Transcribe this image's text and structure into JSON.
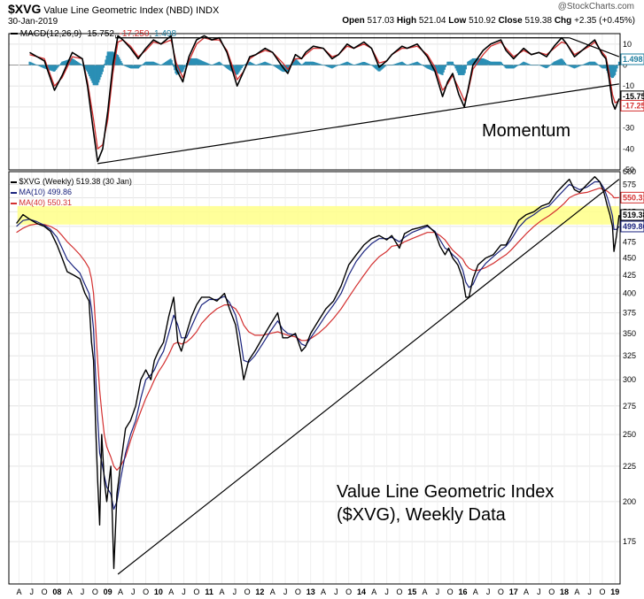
{
  "header": {
    "symbol": "$XVG",
    "name": "Value Line Geometric Index (NBD)",
    "exchange": "INDX",
    "date": "30-Jan-2019",
    "watermark": "@StockCharts.com",
    "open_label": "Open",
    "open": "517.03",
    "high_label": "High",
    "high": "521.04",
    "low_label": "Low",
    "low": "510.92",
    "close_label": "Close",
    "close": "519.38",
    "chg_label": "Chg",
    "chg": "+2.35 (+0.45%)"
  },
  "chart_data": [
    {
      "type": "line",
      "panel": "macd",
      "legend": {
        "macd_label": "MACD(12,26,9)",
        "macd_value": "-15.752",
        "signal_value": "-17.250",
        "hist_value": "1.498"
      },
      "ylim": [
        -50,
        15
      ],
      "y_ticks": [
        "10",
        "0",
        "-10",
        "-20",
        "-30",
        "-40",
        "-50"
      ],
      "annotation": "Momentum",
      "last_value_tags": [
        "1.498",
        "-15.752",
        "-17.250"
      ],
      "x_year": [
        2007.46,
        2007.75,
        2007.95,
        2008.1,
        2008.3,
        2008.5,
        2008.6,
        2008.72,
        2008.8,
        2008.9,
        2009.0,
        2009.1,
        2009.2,
        2009.3,
        2009.45,
        2009.6,
        2009.75,
        2009.9,
        2010.05,
        2010.25,
        2010.35,
        2010.48,
        2010.6,
        2010.75,
        2010.9,
        2011.05,
        2011.2,
        2011.35,
        2011.55,
        2011.68,
        2011.8,
        2011.92,
        2012.1,
        2012.25,
        2012.45,
        2012.55,
        2012.7,
        2012.82,
        2012.9,
        2013.05,
        2013.25,
        2013.42,
        2013.55,
        2013.72,
        2013.85,
        2014.05,
        2014.2,
        2014.35,
        2014.5,
        2014.6,
        2014.8,
        2014.9,
        2015.1,
        2015.3,
        2015.45,
        2015.6,
        2015.7,
        2015.8,
        2015.92,
        2016.03,
        2016.1,
        2016.2,
        2016.4,
        2016.55,
        2016.75,
        2016.85,
        2017.0,
        2017.2,
        2017.35,
        2017.5,
        2017.65,
        2017.8,
        2017.95,
        2018.05,
        2018.2,
        2018.35,
        2018.5,
        2018.6,
        2018.75,
        2018.82,
        2018.88,
        2018.95,
        2019.0,
        2019.08
      ],
      "series": [
        {
          "key": "macd",
          "values": [
            6,
            2,
            -12,
            -5,
            6,
            3,
            -10,
            -32,
            -46,
            -40,
            -22,
            0,
            14,
            12,
            8,
            3,
            8,
            12,
            10,
            14,
            -2,
            -8,
            4,
            12,
            14,
            12,
            13,
            6,
            -10,
            -3,
            4,
            5,
            8,
            6,
            -1,
            -4,
            5,
            3,
            6,
            9,
            8,
            3,
            5,
            10,
            8,
            11,
            8,
            -1,
            2,
            5,
            9,
            8,
            10,
            4,
            -3,
            -15,
            -8,
            -4,
            -14,
            -20,
            -12,
            0,
            7,
            10,
            12,
            7,
            3,
            8,
            5,
            6,
            4,
            9,
            13,
            10,
            4,
            7,
            10,
            12,
            5,
            3,
            -6,
            -18,
            -21,
            -16
          ]
        },
        {
          "key": "signal",
          "values": [
            5,
            3,
            -10,
            -6,
            4,
            3,
            -8,
            -26,
            -40,
            -38,
            -26,
            -4,
            11,
            12,
            9,
            4,
            7,
            11,
            10,
            12,
            1,
            -6,
            2,
            10,
            13,
            12,
            12,
            7,
            -7,
            -3,
            3,
            5,
            7,
            6,
            1,
            -2,
            3,
            3,
            5,
            8,
            8,
            4,
            5,
            9,
            8,
            10,
            8,
            1,
            2,
            5,
            8,
            8,
            9,
            5,
            -1,
            -12,
            -9,
            -5,
            -11,
            -17,
            -13,
            -2,
            5,
            9,
            11,
            8,
            4,
            7,
            5,
            6,
            5,
            8,
            11,
            10,
            5,
            7,
            9,
            11,
            6,
            4,
            -3,
            -14,
            -18,
            -17
          ]
        }
      ]
    },
    {
      "type": "line",
      "panel": "price",
      "title": "Value Line Geometric Index ($XVG), Weekly Data",
      "annotation_line1": "Value Line Geometric Index",
      "annotation_line2": "($XVG), Weekly Data",
      "legend": [
        {
          "label": "$XVG (Weekly) 519.38 (30 Jan)",
          "color": "#000000"
        },
        {
          "label": "MA(10) 499.86",
          "color": "#1a237e"
        },
        {
          "label": "MA(40) 550.31",
          "color": "#d32f2f"
        }
      ],
      "scale": "log",
      "ylim": [
        152,
        600
      ],
      "y_ticks": [
        600,
        575,
        550,
        525,
        500,
        475,
        450,
        425,
        400,
        375,
        350,
        325,
        300,
        275,
        250,
        225,
        200,
        175
      ],
      "last_value_tags": [
        "550.31",
        "519.38",
        "499.86"
      ],
      "resistance_band": [
        503,
        535
      ],
      "x_tick_labels": [
        "A",
        "J",
        "O",
        "08",
        "A",
        "J",
        "O",
        "09",
        "A",
        "J",
        "O",
        "10",
        "A",
        "J",
        "O",
        "11",
        "A",
        "J",
        "O",
        "12",
        "A",
        "J",
        "O",
        "13",
        "A",
        "J",
        "O",
        "14",
        "A",
        "J",
        "O",
        "15",
        "A",
        "J",
        "O",
        "16",
        "A",
        "J",
        "O",
        "17",
        "A",
        "J",
        "O",
        "18",
        "A",
        "J",
        "O",
        "19"
      ],
      "x_year": [
        2007.2,
        2007.33,
        2007.46,
        2007.6,
        2007.75,
        2007.87,
        2008.0,
        2008.1,
        2008.2,
        2008.33,
        2008.45,
        2008.55,
        2008.63,
        2008.68,
        2008.72,
        2008.76,
        2008.8,
        2008.84,
        2008.88,
        2008.93,
        2008.98,
        2009.06,
        2009.12,
        2009.18,
        2009.25,
        2009.35,
        2009.45,
        2009.55,
        2009.65,
        2009.75,
        2009.85,
        2009.92,
        2010.0,
        2010.1,
        2010.2,
        2010.3,
        2010.38,
        2010.45,
        2010.55,
        2010.65,
        2010.75,
        2010.85,
        2011.0,
        2011.15,
        2011.3,
        2011.4,
        2011.52,
        2011.6,
        2011.68,
        2011.78,
        2011.9,
        2012.05,
        2012.2,
        2012.35,
        2012.45,
        2012.55,
        2012.7,
        2012.82,
        2012.9,
        2013.0,
        2013.15,
        2013.3,
        2013.45,
        2013.6,
        2013.75,
        2013.9,
        2014.05,
        2014.2,
        2014.35,
        2014.5,
        2014.6,
        2014.75,
        2014.85,
        2015.0,
        2015.15,
        2015.3,
        2015.45,
        2015.55,
        2015.65,
        2015.72,
        2015.8,
        2015.9,
        2016.0,
        2016.06,
        2016.12,
        2016.2,
        2016.3,
        2016.45,
        2016.6,
        2016.75,
        2016.85,
        2016.95,
        2017.1,
        2017.25,
        2017.4,
        2017.55,
        2017.7,
        2017.85,
        2018.0,
        2018.1,
        2018.2,
        2018.3,
        2018.45,
        2018.6,
        2018.7,
        2018.78,
        2018.85,
        2018.9,
        2018.95,
        2018.98,
        2019.03,
        2019.08
      ],
      "series": [
        {
          "key": "price",
          "values": [
            505,
            520,
            512,
            505,
            500,
            492,
            470,
            450,
            430,
            425,
            420,
            400,
            390,
            340,
            320,
            260,
            215,
            185,
            250,
            215,
            200,
            225,
            160,
            205,
            225,
            255,
            262,
            275,
            300,
            310,
            300,
            320,
            330,
            340,
            370,
            395,
            340,
            330,
            350,
            370,
            385,
            395,
            395,
            390,
            400,
            380,
            360,
            330,
            300,
            320,
            330,
            345,
            360,
            375,
            345,
            345,
            350,
            330,
            335,
            350,
            365,
            380,
            390,
            410,
            440,
            455,
            470,
            480,
            485,
            478,
            485,
            465,
            488,
            495,
            498,
            502,
            490,
            468,
            455,
            465,
            450,
            440,
            420,
            395,
            395,
            420,
            440,
            450,
            455,
            470,
            470,
            485,
            510,
            520,
            525,
            535,
            540,
            560,
            575,
            585,
            565,
            560,
            575,
            590,
            580,
            560,
            535,
            520,
            500,
            460,
            485,
            519
          ]
        },
        {
          "key": "ma10",
          "values": [
            500,
            510,
            512,
            508,
            502,
            495,
            482,
            465,
            448,
            437,
            428,
            412,
            400,
            380,
            355,
            305,
            265,
            235,
            228,
            218,
            210,
            205,
            195,
            200,
            215,
            235,
            250,
            262,
            282,
            300,
            305,
            310,
            320,
            330,
            350,
            372,
            360,
            345,
            345,
            358,
            372,
            385,
            392,
            392,
            396,
            388,
            372,
            350,
            320,
            318,
            325,
            338,
            352,
            365,
            355,
            350,
            348,
            338,
            336,
            345,
            358,
            372,
            385,
            400,
            425,
            445,
            460,
            472,
            480,
            480,
            482,
            475,
            482,
            490,
            495,
            500,
            492,
            478,
            465,
            462,
            455,
            448,
            432,
            415,
            408,
            412,
            428,
            442,
            452,
            462,
            468,
            478,
            498,
            512,
            520,
            530,
            535,
            550,
            565,
            575,
            570,
            565,
            570,
            580,
            580,
            568,
            550,
            535,
            518,
            495,
            495,
            499.86
          ]
        },
        {
          "key": "ma40",
          "values": [
            490,
            497,
            502,
            504,
            503,
            500,
            494,
            485,
            475,
            465,
            455,
            445,
            435,
            420,
            400,
            360,
            320,
            290,
            270,
            250,
            240,
            232,
            225,
            222,
            225,
            232,
            245,
            258,
            270,
            282,
            292,
            300,
            308,
            316,
            326,
            338,
            340,
            338,
            340,
            345,
            352,
            362,
            372,
            380,
            385,
            385,
            380,
            372,
            360,
            352,
            348,
            348,
            350,
            352,
            350,
            348,
            346,
            342,
            342,
            344,
            350,
            358,
            368,
            380,
            395,
            410,
            425,
            440,
            452,
            460,
            468,
            470,
            475,
            480,
            485,
            490,
            490,
            485,
            478,
            470,
            462,
            455,
            448,
            440,
            435,
            432,
            432,
            436,
            442,
            450,
            455,
            462,
            475,
            488,
            500,
            510,
            518,
            528,
            540,
            550,
            555,
            558,
            560,
            565,
            568,
            565,
            562,
            558,
            554,
            550,
            550,
            550.31
          ]
        }
      ]
    }
  ]
}
